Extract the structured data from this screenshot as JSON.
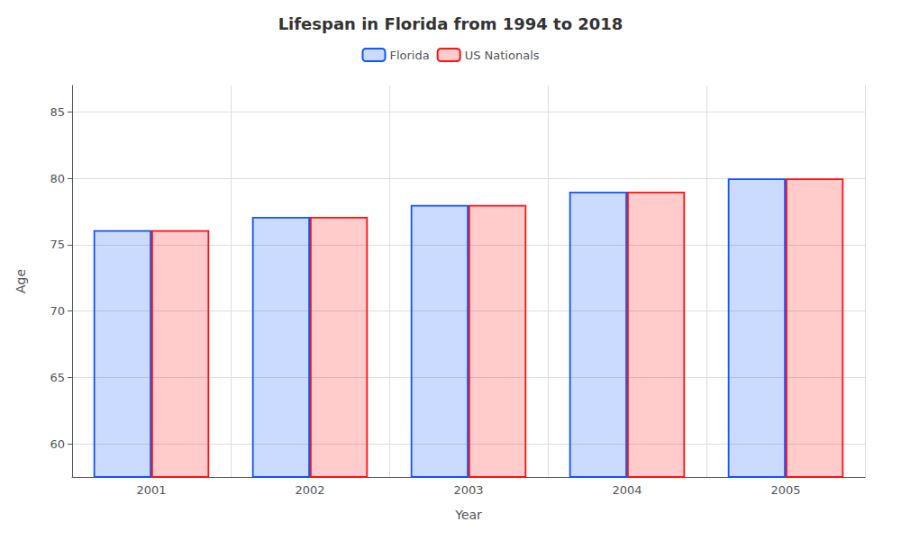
{
  "chart_data": {
    "type": "bar",
    "title": "Lifespan in Florida from 1994 to 2018",
    "xlabel": "Year",
    "ylabel": "Age",
    "categories": [
      "2001",
      "2002",
      "2003",
      "2004",
      "2005"
    ],
    "series": [
      {
        "name": "Florida",
        "color": "#1155ff",
        "values": [
          76.1,
          77.1,
          78.0,
          79.0,
          80.0
        ]
      },
      {
        "name": "US Nationals",
        "color": "#ff1111",
        "values": [
          76.1,
          77.1,
          78.0,
          79.0,
          80.0
        ]
      }
    ],
    "ylim": [
      57.5,
      87
    ],
    "yticks": [
      60,
      65,
      70,
      75,
      80,
      85
    ],
    "grid": true,
    "legend": "upper center"
  }
}
